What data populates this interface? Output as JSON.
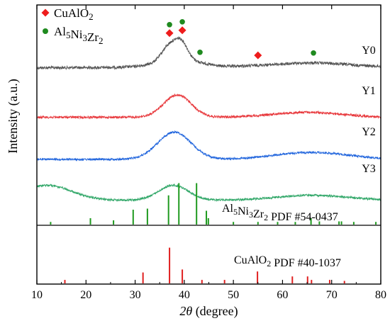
{
  "chart_data": {
    "type": "line",
    "xlabel_italic": "2θ",
    "xlabel_rest": " (degree)",
    "ylabel": "Intensity (a.u.)",
    "xlim": [
      10,
      80
    ],
    "xticks": [
      10,
      20,
      30,
      40,
      50,
      60,
      70,
      80
    ],
    "legend": {
      "position": "top-left",
      "entries": [
        {
          "marker": "diamond",
          "color": "#ee1c1c",
          "text": "CuAlO",
          "sub": "2"
        },
        {
          "marker": "circle",
          "color": "#1f8a1f",
          "parts": [
            [
              "Al",
              ""
            ],
            [
              "5",
              "sub"
            ],
            [
              "Ni",
              ""
            ],
            [
              "3",
              "sub"
            ],
            [
              "Zr",
              ""
            ],
            [
              "2",
              "sub"
            ]
          ]
        }
      ]
    },
    "series": [
      {
        "name": "Y0",
        "color": "#555555",
        "baseline": 0.42,
        "slope": 0.02,
        "peaks": [
          [
            37.0,
            0.32,
            1.6
          ],
          [
            39.5,
            0.34,
            1.3
          ],
          [
            38.2,
            0.12,
            4.5
          ],
          [
            43.0,
            0.03,
            2.0
          ],
          [
            66.5,
            0.08,
            6.5
          ],
          [
            55.0,
            0.02,
            5.0
          ]
        ],
        "noise": 0.05
      },
      {
        "name": "Y1",
        "color": "#e8393d",
        "baseline": 0.35,
        "slope": 0.0,
        "peaks": [
          [
            38.6,
            0.45,
            2.8
          ],
          [
            65.0,
            0.1,
            7.0
          ]
        ],
        "noise": 0.04
      },
      {
        "name": "Y2",
        "color": "#2266dd",
        "baseline": 0.3,
        "slope": 0.0,
        "peaks": [
          [
            38.0,
            0.55,
            3.4
          ],
          [
            66.0,
            0.14,
            7.5
          ]
        ],
        "noise": 0.035
      },
      {
        "name": "Y3",
        "color": "#33a86a",
        "baseline": 0.22,
        "slope": 0.0,
        "peaks": [
          [
            37.8,
            0.3,
            3.0
          ],
          [
            12.0,
            0.3,
            5.0
          ],
          [
            66.0,
            0.1,
            7.0
          ]
        ],
        "noise": 0.035
      }
    ],
    "markers": [
      {
        "type": "diamond",
        "color": "#ee1c1c",
        "x": 37.0,
        "series": "Y0"
      },
      {
        "type": "circle",
        "color": "#1f8a1f",
        "x": 37.0,
        "series": "Y0",
        "above": 1
      },
      {
        "type": "diamond",
        "color": "#ee1c1c",
        "x": 39.6,
        "series": "Y0"
      },
      {
        "type": "circle",
        "color": "#1f8a1f",
        "x": 39.6,
        "series": "Y0",
        "above": 1
      },
      {
        "type": "circle",
        "color": "#1f8a1f",
        "x": 43.2,
        "series": "Y0"
      },
      {
        "type": "diamond",
        "color": "#ee1c1c",
        "x": 55.0,
        "series": "Y0"
      },
      {
        "type": "circle",
        "color": "#1f8a1f",
        "x": 66.3,
        "series": "Y0"
      }
    ],
    "reference_patterns": [
      {
        "name": "Al5Ni3Zr2 PDF #54-0437",
        "label_parts": [
          [
            "Al",
            ""
          ],
          [
            "5",
            "sub"
          ],
          [
            "Ni",
            ""
          ],
          [
            "3",
            "sub"
          ],
          [
            "Zr",
            ""
          ],
          [
            "2",
            "sub"
          ],
          [
            " PDF #54-0437",
            ""
          ]
        ],
        "color": "#1f9a1f",
        "sticks": [
          [
            12.8,
            0.05
          ],
          [
            20.9,
            0.12
          ],
          [
            25.6,
            0.08
          ],
          [
            29.6,
            0.28
          ],
          [
            32.5,
            0.3
          ],
          [
            36.8,
            0.55
          ],
          [
            38.9,
            0.78
          ],
          [
            42.5,
            0.78
          ],
          [
            44.5,
            0.26
          ],
          [
            44.9,
            0.12
          ],
          [
            50.0,
            0.05
          ],
          [
            55.0,
            0.05
          ],
          [
            59.0,
            0.05
          ],
          [
            62.6,
            0.05
          ],
          [
            65.8,
            0.12
          ],
          [
            67.5,
            0.06
          ],
          [
            71.5,
            0.06
          ],
          [
            72.0,
            0.06
          ],
          [
            74.5,
            0.05
          ],
          [
            79.0,
            0.05
          ]
        ]
      },
      {
        "name": "CuAlO2 PDF #40-1037",
        "label_parts": [
          [
            "CuAlO",
            ""
          ],
          [
            "2",
            "sub"
          ],
          [
            "  PDF #40-1037",
            ""
          ]
        ],
        "color": "#e02020",
        "sticks": [
          [
            15.7,
            0.07
          ],
          [
            31.6,
            0.22
          ],
          [
            37.0,
            0.72
          ],
          [
            39.6,
            0.28
          ],
          [
            43.6,
            0.07
          ],
          [
            48.2,
            0.07
          ],
          [
            54.9,
            0.24
          ],
          [
            62.0,
            0.14
          ],
          [
            65.1,
            0.14
          ],
          [
            65.9,
            0.07
          ],
          [
            69.6,
            0.07
          ],
          [
            72.6,
            0.05
          ]
        ]
      }
    ]
  }
}
